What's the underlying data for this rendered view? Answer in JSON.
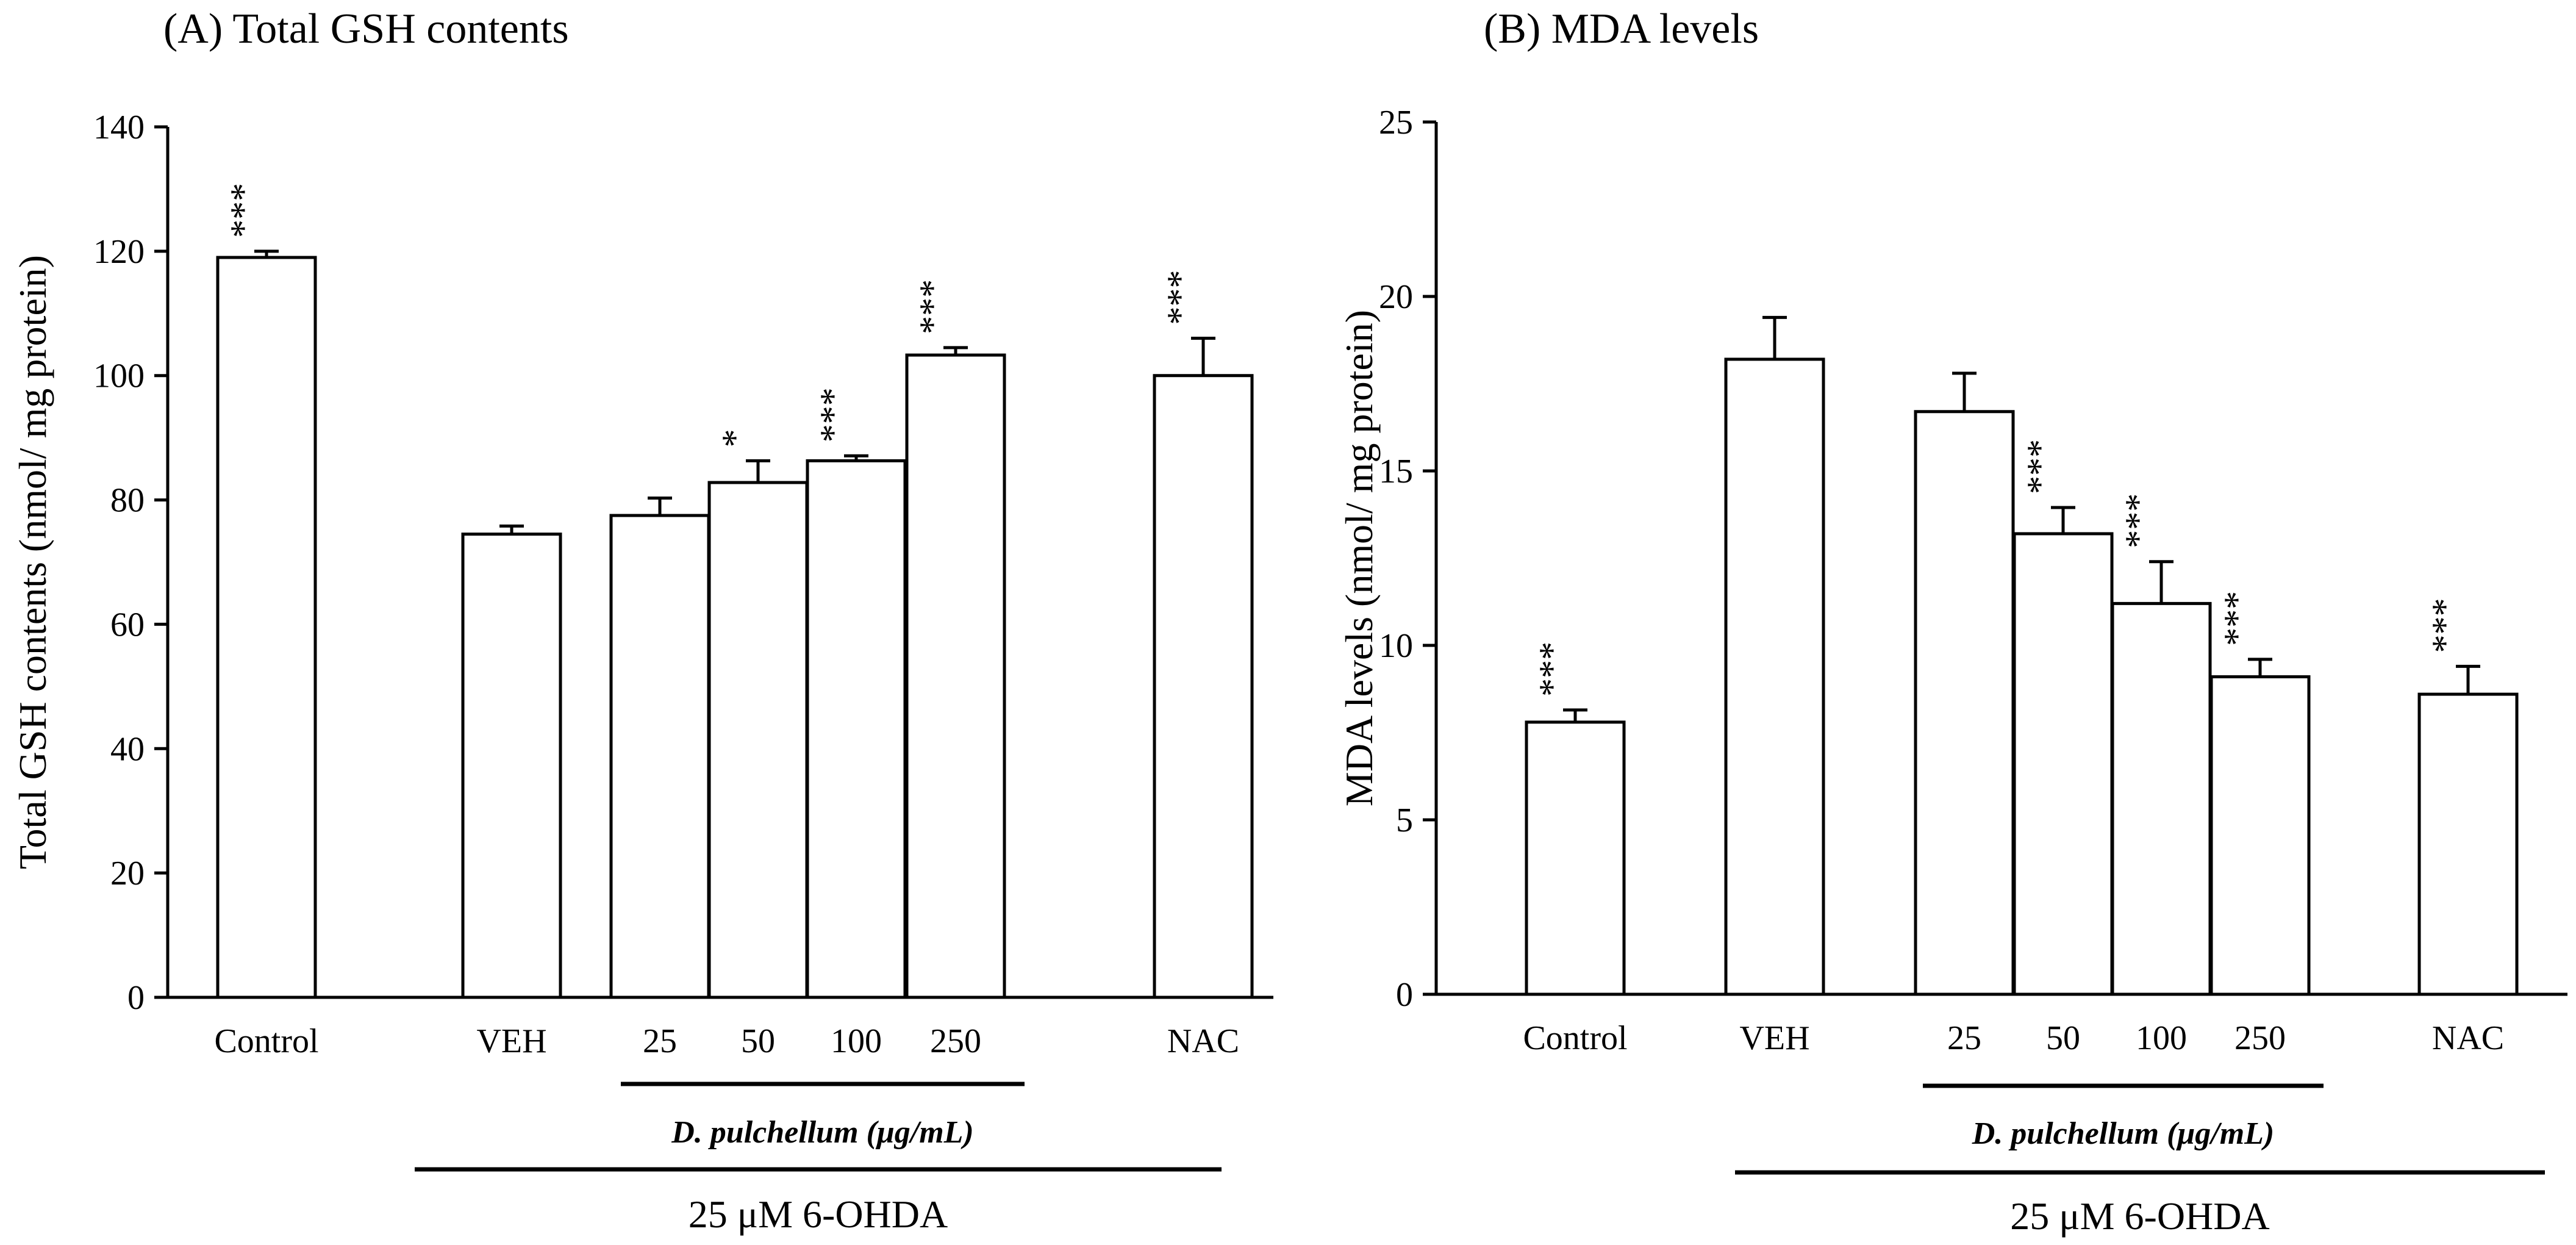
{
  "chart_data": [
    {
      "type": "bar",
      "title": "(A) Total GSH contents",
      "ylabel": "Total GSH contents (nmol/ mg protein)",
      "xlabel": "",
      "ylim": [
        0,
        140
      ],
      "yticks": [
        0,
        20,
        40,
        60,
        80,
        100,
        120,
        140
      ],
      "categories": [
        "Control",
        "VEH",
        "25",
        "50",
        "100",
        "250",
        "NAC"
      ],
      "values": [
        119,
        74.5,
        77.5,
        82.8,
        86.3,
        103.3,
        100
      ],
      "errors": [
        1,
        1.3,
        2.8,
        3.5,
        0.8,
        1.2,
        6
      ],
      "significance": [
        "***",
        "",
        "",
        "*",
        "***",
        "***",
        "***"
      ],
      "group_label": "D. pulchellum (μg/mL)",
      "treatment_label": "25 μM 6-OHDA"
    },
    {
      "type": "bar",
      "title": "(B) MDA levels",
      "ylabel": "MDA levels (nmol/ mg protein)",
      "xlabel": "",
      "ylim": [
        0,
        25
      ],
      "yticks": [
        0,
        5,
        10,
        15,
        20,
        25
      ],
      "categories": [
        "Control",
        "VEH",
        "25",
        "50",
        "100",
        "250",
        "NAC"
      ],
      "values": [
        7.8,
        18.2,
        16.7,
        13.2,
        11.2,
        9.1,
        8.6
      ],
      "errors": [
        0.35,
        1.2,
        1.1,
        0.75,
        1.2,
        0.5,
        0.8
      ],
      "significance": [
        "***",
        "",
        "",
        "***",
        "***",
        "***",
        "***"
      ],
      "group_label": "D. pulchellum (μg/mL)",
      "treatment_label": "25 μM 6-OHDA"
    }
  ]
}
